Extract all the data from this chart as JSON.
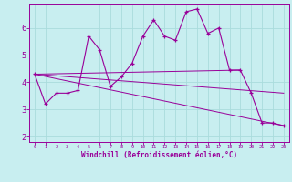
{
  "xlabel": "Windchill (Refroidissement éolien,°C)",
  "hours": [
    0,
    1,
    2,
    3,
    4,
    5,
    6,
    7,
    8,
    9,
    10,
    11,
    12,
    13,
    14,
    15,
    16,
    17,
    18,
    19,
    20,
    21,
    22,
    23
  ],
  "main_data": [
    4.3,
    3.2,
    3.6,
    3.6,
    3.7,
    5.7,
    5.2,
    3.85,
    4.2,
    4.7,
    5.7,
    6.3,
    5.7,
    5.55,
    6.6,
    6.7,
    5.8,
    6.0,
    4.45,
    4.45,
    3.6,
    2.5,
    2.5,
    2.4
  ],
  "line_color": "#990099",
  "bg_color": "#c8eef0",
  "ylim": [
    1.8,
    6.9
  ],
  "xlim": [
    -0.5,
    23.5
  ],
  "yticks": [
    2,
    3,
    4,
    5,
    6
  ],
  "xticks": [
    0,
    1,
    2,
    3,
    4,
    5,
    6,
    7,
    8,
    9,
    10,
    11,
    12,
    13,
    14,
    15,
    16,
    17,
    18,
    19,
    20,
    21,
    22,
    23
  ],
  "grid_color": "#aadcdc",
  "trend_lines": [
    {
      "x": [
        0,
        23
      ],
      "y": [
        4.3,
        2.4
      ]
    },
    {
      "x": [
        0,
        19
      ],
      "y": [
        4.3,
        4.45
      ]
    },
    {
      "x": [
        0,
        23
      ],
      "y": [
        4.3,
        3.6
      ]
    }
  ],
  "fig_width": 3.2,
  "fig_height": 2.0,
  "dpi": 100
}
